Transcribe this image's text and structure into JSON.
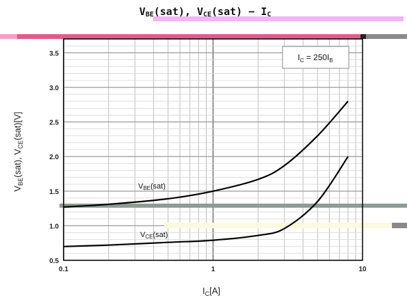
{
  "chart_data": {
    "type": "line",
    "title_parts": {
      "t1": "V",
      "t1sub": "BE",
      "t2": "(sat), V",
      "t2sub": "CE",
      "t3": "(sat) − I",
      "t3sub": "C"
    },
    "xlabel_parts": {
      "a": "I",
      "sub": "C",
      "b": "[A]"
    },
    "ylabel_parts": {
      "a": "V",
      "sub1": "BE",
      "b": "(sat), V",
      "sub2": "CE",
      "c": "(sat)[V]"
    },
    "condition_parts": {
      "a": "I",
      "sub1": "C",
      "b": " = 250I",
      "sub2": "B"
    },
    "x_scale": "log",
    "xlim": [
      0.1,
      10
    ],
    "ylim": [
      0.5,
      3.7
    ],
    "x_ticks": [
      "0.1",
      "1",
      "10"
    ],
    "y_ticks": [
      "0.5",
      "1.0",
      "1.5",
      "2.0",
      "2.5",
      "3.0",
      "3.5"
    ],
    "grid": true,
    "series": [
      {
        "label_parts": {
          "a": "V",
          "sub": "BE",
          "b": "(sat)"
        },
        "x": [
          0.1,
          0.2,
          0.5,
          1.0,
          2.0,
          3.0,
          5.0,
          8.0
        ],
        "y": [
          1.27,
          1.31,
          1.39,
          1.5,
          1.67,
          1.87,
          2.3,
          2.8
        ]
      },
      {
        "label_parts": {
          "a": "V",
          "sub": "CE",
          "b": "(sat)"
        },
        "x": [
          0.1,
          0.2,
          0.5,
          1.0,
          2.0,
          3.0,
          5.0,
          8.0
        ],
        "y": [
          0.7,
          0.72,
          0.76,
          0.79,
          0.86,
          0.96,
          1.35,
          2.0
        ]
      }
    ],
    "colors": {
      "curve": "#000000",
      "grid": "#bdbdbd",
      "frame": "#000000",
      "title_band": "#f3a6f0"
    }
  }
}
